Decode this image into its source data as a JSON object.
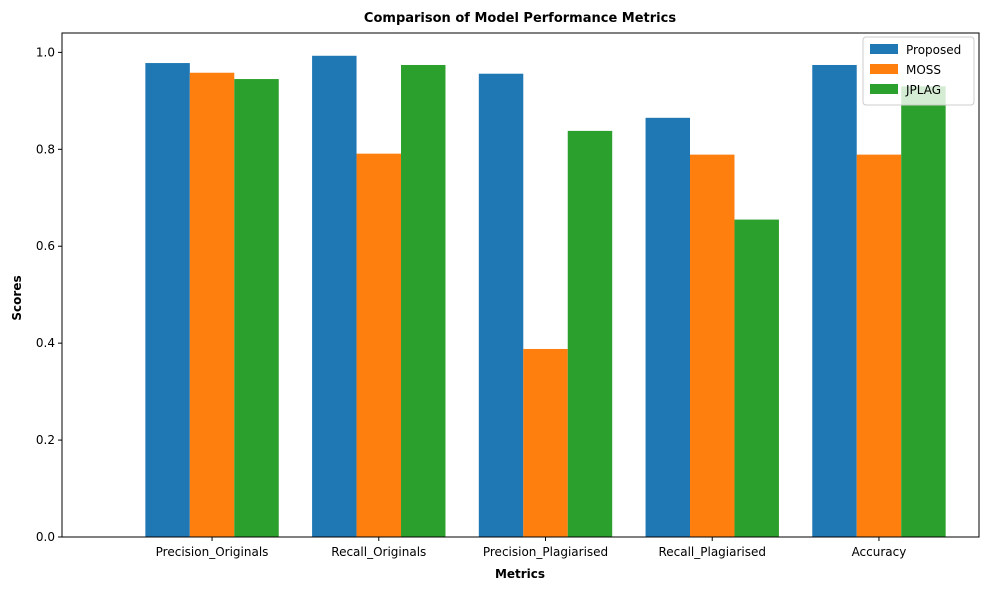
{
  "chart_data": {
    "type": "bar",
    "title": "Comparison of Model Performance Metrics",
    "xlabel": "Metrics",
    "ylabel": "Scores",
    "categories": [
      "Precision_Originals",
      "Recall_Originals",
      "Precision_Plagiarised",
      "Recall_Plagiarised",
      "Accuracy"
    ],
    "series": [
      {
        "name": "Proposed",
        "color": "#1f77b4",
        "values": [
          0.978,
          0.993,
          0.956,
          0.865,
          0.974
        ]
      },
      {
        "name": "MOSS",
        "color": "#ff7f0e",
        "values": [
          0.958,
          0.791,
          0.388,
          0.789,
          0.789
        ]
      },
      {
        "name": "JPLAG",
        "color": "#2ca02c",
        "values": [
          0.945,
          0.974,
          0.838,
          0.655,
          0.93
        ]
      }
    ],
    "ylim": [
      0,
      1.04
    ],
    "yticks": [
      0.0,
      0.2,
      0.4,
      0.6,
      0.8,
      1.0
    ],
    "ytick_labels": [
      "0.0",
      "0.2",
      "0.4",
      "0.6",
      "0.8",
      "1.0"
    ],
    "grid": false,
    "legend_position": "top-right"
  }
}
